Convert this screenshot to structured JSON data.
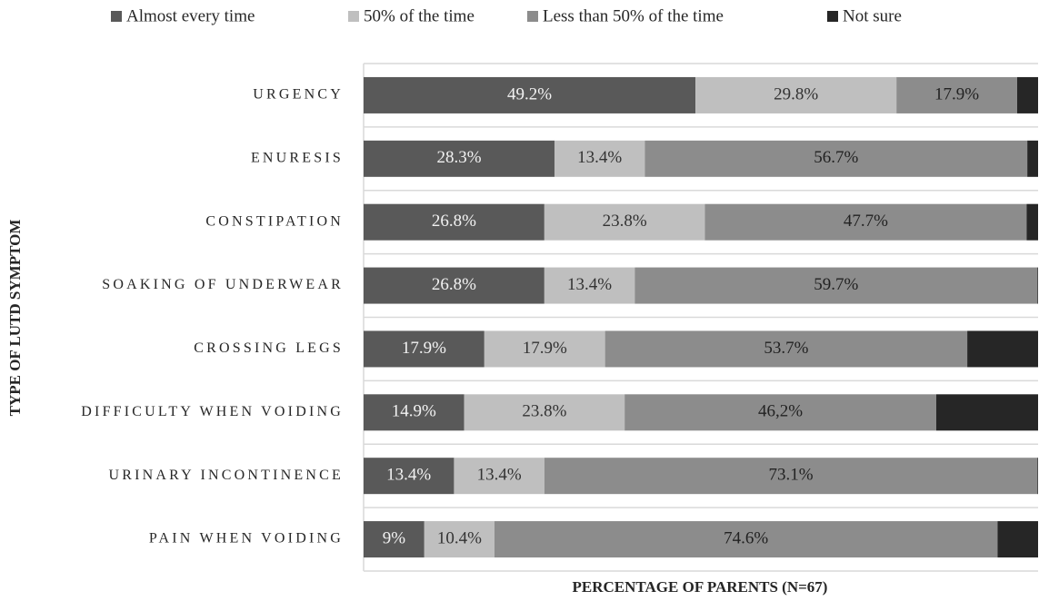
{
  "chart_data": {
    "type": "stacked-bar-horizontal",
    "x_label": "PERCENTAGE OF PARENTS (N=67)",
    "y_label": "TYPE OF LUTD SYMPTOM",
    "categories": [
      "URGENCY",
      "ENURESIS",
      "CONSTIPATION",
      "SOAKING OF UNDERWEAR",
      "CROSSING LEGS",
      "DIFFICULTY WHEN VOIDING",
      "URINARY INCONTINENCE",
      "PAIN WHEN VOIDING"
    ],
    "series": [
      {
        "name": "Almost every time",
        "color": "#595959",
        "label_color": "#f2f2f2",
        "values": [
          49.2,
          28.3,
          26.8,
          26.8,
          17.9,
          14.9,
          13.4,
          9
        ],
        "value_labels": [
          "49.2%",
          "28.3%",
          "26.8%",
          "26.8%",
          "17.9%",
          "14.9%",
          "13.4%",
          "9%"
        ]
      },
      {
        "name": "50% of the time",
        "color": "#bfbfbf",
        "label_color": "#333333",
        "values": [
          29.8,
          13.4,
          23.8,
          13.4,
          17.9,
          23.8,
          13.4,
          10.4
        ],
        "value_labels": [
          "29.8%",
          "13.4%",
          "23.8%",
          "13.4%",
          "17.9%",
          "23.8%",
          "13.4%",
          "10.4%"
        ]
      },
      {
        "name": "Less than 50% of the time",
        "color": "#8c8c8c",
        "label_color": "#222222",
        "values": [
          17.9,
          56.7,
          47.7,
          59.7,
          53.7,
          46.2,
          73.1,
          74.6
        ],
        "value_labels": [
          "17.9%",
          "56.7%",
          "47.7%",
          "59.7%",
          "53.7%",
          "46,2%",
          "73.1%",
          "74.6%"
        ]
      },
      {
        "name": "Not sure",
        "color": "#262626",
        "values": [
          3.1,
          1.6,
          1.7,
          0.1,
          10.5,
          15.1,
          0.1,
          6
        ]
      }
    ],
    "xlim": [
      0,
      100
    ],
    "grid": true
  }
}
